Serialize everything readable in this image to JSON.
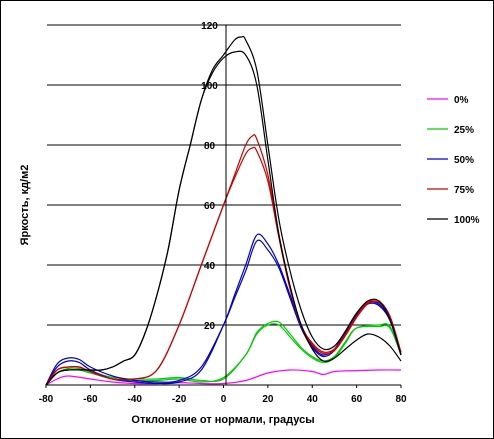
{
  "chart_data": {
    "type": "line",
    "title": "",
    "xlabel": "Отклонение от нормали, градусы",
    "ylabel": "Яркость, кд/м2",
    "xlim": [
      -80,
      80
    ],
    "ylim": [
      0,
      120
    ],
    "xticks": [
      -80,
      -60,
      -40,
      -20,
      0,
      20,
      40,
      60,
      80
    ],
    "yticks": [
      0,
      20,
      40,
      60,
      80,
      100,
      120
    ],
    "grid": "horizontal",
    "legend_position": "right",
    "series": [
      {
        "name": "0%",
        "color": "#ff00ff",
        "curves": [
          [
            [
              -80,
              0
            ],
            [
              -75,
              2
            ],
            [
              -70,
              3
            ],
            [
              -60,
              2
            ],
            [
              -50,
              1
            ],
            [
              -40,
              0.5
            ],
            [
              -30,
              0.5
            ],
            [
              -20,
              0.8
            ],
            [
              -10,
              0.5
            ],
            [
              0,
              0.5
            ],
            [
              10,
              1.5
            ],
            [
              20,
              4
            ],
            [
              30,
              5
            ],
            [
              40,
              4.5
            ],
            [
              45,
              3.5
            ],
            [
              50,
              4.5
            ],
            [
              60,
              4.8
            ],
            [
              70,
              5
            ],
            [
              80,
              5
            ]
          ]
        ]
      },
      {
        "name": "25%",
        "color": "#00cc00",
        "curves": [
          [
            [
              -80,
              0
            ],
            [
              -75,
              4
            ],
            [
              -70,
              5.5
            ],
            [
              -65,
              5.5
            ],
            [
              -60,
              4.5
            ],
            [
              -50,
              2.5
            ],
            [
              -40,
              2
            ],
            [
              -30,
              2
            ],
            [
              -20,
              2.5
            ],
            [
              -10,
              1.5
            ],
            [
              0,
              2
            ],
            [
              10,
              10
            ],
            [
              15,
              17
            ],
            [
              20,
              20
            ],
            [
              25,
              20
            ],
            [
              30,
              16
            ],
            [
              35,
              12
            ],
            [
              40,
              9
            ],
            [
              45,
              7.5
            ],
            [
              50,
              9
            ],
            [
              55,
              14
            ],
            [
              60,
              19
            ],
            [
              70,
              20
            ],
            [
              75,
              19.5
            ],
            [
              80,
              10
            ]
          ],
          [
            [
              -80,
              0
            ],
            [
              -75,
              4
            ],
            [
              -70,
              5
            ],
            [
              -65,
              5
            ],
            [
              -60,
              4
            ],
            [
              -50,
              2
            ],
            [
              -40,
              1.5
            ],
            [
              -30,
              1.5
            ],
            [
              -20,
              2
            ],
            [
              -10,
              1
            ],
            [
              0,
              2.5
            ],
            [
              10,
              10
            ],
            [
              15,
              17.5
            ],
            [
              20,
              20.5
            ],
            [
              25,
              21
            ],
            [
              30,
              17
            ],
            [
              35,
              12.5
            ],
            [
              40,
              9.5
            ],
            [
              45,
              8
            ],
            [
              50,
              9.5
            ],
            [
              55,
              14.5
            ],
            [
              60,
              19
            ],
            [
              70,
              19.5
            ],
            [
              75,
              19
            ],
            [
              80,
              10
            ]
          ]
        ]
      },
      {
        "name": "50%",
        "color": "#0000cc",
        "curves": [
          [
            [
              -80,
              0
            ],
            [
              -75,
              6
            ],
            [
              -70,
              8
            ],
            [
              -65,
              7.5
            ],
            [
              -60,
              5
            ],
            [
              -50,
              2
            ],
            [
              -40,
              1
            ],
            [
              -30,
              0.5
            ],
            [
              -20,
              1
            ],
            [
              -10,
              5
            ],
            [
              0,
              20
            ],
            [
              5,
              30
            ],
            [
              10,
              40
            ],
            [
              15,
              50
            ],
            [
              20,
              47
            ],
            [
              25,
              40
            ],
            [
              30,
              30
            ],
            [
              35,
              20
            ],
            [
              40,
              13
            ],
            [
              45,
              10
            ],
            [
              50,
              12
            ],
            [
              55,
              18
            ],
            [
              60,
              24
            ],
            [
              65,
              27.5
            ],
            [
              70,
              27
            ],
            [
              75,
              22
            ],
            [
              80,
              10
            ]
          ],
          [
            [
              -80,
              0
            ],
            [
              -75,
              7
            ],
            [
              -70,
              9
            ],
            [
              -65,
              8.5
            ],
            [
              -60,
              6
            ],
            [
              -50,
              3
            ],
            [
              -40,
              1.5
            ],
            [
              -30,
              1
            ],
            [
              -20,
              1.5
            ],
            [
              -10,
              6
            ],
            [
              0,
              20
            ],
            [
              5,
              29
            ],
            [
              10,
              38
            ],
            [
              15,
              48
            ],
            [
              20,
              45
            ],
            [
              25,
              39
            ],
            [
              30,
              29
            ],
            [
              35,
              19
            ],
            [
              40,
              12.5
            ],
            [
              45,
              9.5
            ],
            [
              50,
              11.5
            ],
            [
              55,
              17.5
            ],
            [
              60,
              23.5
            ],
            [
              65,
              27
            ],
            [
              70,
              26.5
            ],
            [
              75,
              21.5
            ],
            [
              80,
              10
            ]
          ]
        ]
      },
      {
        "name": "75%",
        "color": "#cc0000",
        "curves": [
          [
            [
              -80,
              0
            ],
            [
              -75,
              5
            ],
            [
              -70,
              6
            ],
            [
              -65,
              6
            ],
            [
              -60,
              4.5
            ],
            [
              -50,
              2
            ],
            [
              -40,
              2
            ],
            [
              -30,
              5
            ],
            [
              -20,
              20
            ],
            [
              -10,
              40
            ],
            [
              0,
              60
            ],
            [
              5,
              70
            ],
            [
              10,
              80
            ],
            [
              13,
              83
            ],
            [
              15,
              82
            ],
            [
              20,
              70
            ],
            [
              25,
              50
            ],
            [
              30,
              33
            ],
            [
              35,
              20
            ],
            [
              40,
              14
            ],
            [
              45,
              11
            ],
            [
              50,
              12
            ],
            [
              55,
              17
            ],
            [
              60,
              23
            ],
            [
              65,
              27.5
            ],
            [
              70,
              28
            ],
            [
              75,
              23
            ],
            [
              80,
              11
            ]
          ],
          [
            [
              -80,
              0
            ],
            [
              -75,
              5
            ],
            [
              -70,
              6
            ],
            [
              -65,
              6
            ],
            [
              -60,
              4.5
            ],
            [
              -50,
              2
            ],
            [
              -40,
              2
            ],
            [
              -30,
              5
            ],
            [
              -20,
              20
            ],
            [
              -10,
              40
            ],
            [
              0,
              60
            ],
            [
              5,
              69
            ],
            [
              10,
              77
            ],
            [
              13,
              79
            ],
            [
              15,
              78
            ],
            [
              20,
              68
            ],
            [
              25,
              49
            ],
            [
              30,
              32
            ],
            [
              35,
              20
            ],
            [
              40,
              13.5
            ],
            [
              45,
              10.5
            ],
            [
              50,
              11.5
            ],
            [
              55,
              16.5
            ],
            [
              60,
              22.5
            ],
            [
              65,
              27
            ],
            [
              70,
              27.5
            ],
            [
              75,
              22.5
            ],
            [
              80,
              10.5
            ]
          ]
        ]
      },
      {
        "name": "100%",
        "color": "#000000",
        "curves": [
          [
            [
              -80,
              0
            ],
            [
              -75,
              4
            ],
            [
              -70,
              5
            ],
            [
              -60,
              5
            ],
            [
              -55,
              5
            ],
            [
              -50,
              6
            ],
            [
              -45,
              8
            ],
            [
              -40,
              10
            ],
            [
              -35,
              18
            ],
            [
              -30,
              30
            ],
            [
              -25,
              45
            ],
            [
              -20,
              65
            ],
            [
              -15,
              80
            ],
            [
              -10,
              95
            ],
            [
              -5,
              105
            ],
            [
              0,
              110
            ],
            [
              5,
              115
            ],
            [
              8,
              116
            ],
            [
              10,
              115
            ],
            [
              15,
              105
            ],
            [
              20,
              80
            ],
            [
              25,
              55
            ],
            [
              30,
              38
            ],
            [
              35,
              25
            ],
            [
              40,
              16
            ],
            [
              45,
              12
            ],
            [
              50,
              13
            ],
            [
              55,
              18
            ],
            [
              60,
              24
            ],
            [
              65,
              28
            ],
            [
              70,
              28
            ],
            [
              75,
              22
            ],
            [
              80,
              10
            ]
          ],
          [
            [
              -80,
              0
            ],
            [
              -75,
              4
            ],
            [
              -70,
              5
            ],
            [
              -60,
              5
            ],
            [
              -55,
              5
            ],
            [
              -50,
              6
            ],
            [
              -45,
              8
            ],
            [
              -40,
              10
            ],
            [
              -35,
              18
            ],
            [
              -30,
              30
            ],
            [
              -25,
              45
            ],
            [
              -20,
              65
            ],
            [
              -15,
              80
            ],
            [
              -10,
              95
            ],
            [
              -5,
              104
            ],
            [
              0,
              109
            ],
            [
              5,
              111
            ],
            [
              10,
              110
            ],
            [
              15,
              100
            ],
            [
              20,
              75
            ],
            [
              25,
              50
            ],
            [
              30,
              33
            ],
            [
              35,
              20
            ],
            [
              40,
              12
            ],
            [
              45,
              8
            ],
            [
              50,
              9
            ],
            [
              55,
              12
            ],
            [
              60,
              15
            ],
            [
              65,
              17
            ],
            [
              70,
              16
            ],
            [
              75,
              13
            ],
            [
              80,
              8
            ]
          ]
        ]
      }
    ]
  }
}
